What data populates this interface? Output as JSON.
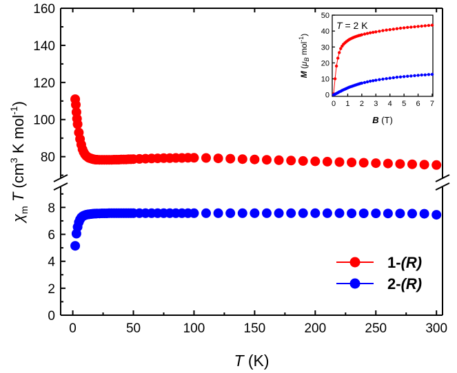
{
  "chart_data": {
    "type": "scatter",
    "xlabel": {
      "var": "T",
      "unit": "(K)"
    },
    "ylabel": {
      "chi": "χ",
      "sub": "m",
      "var": "T",
      "unit_open": "(cm",
      "sup1": "3",
      "unit_mid": " K mol",
      "sup2": "-1",
      "unit_close": ")"
    },
    "xlim": [
      -10,
      305
    ],
    "ylim_lower": [
      0,
      9.5
    ],
    "ylim_upper": [
      68,
      160
    ],
    "x_ticks": [
      "0",
      "50",
      "100",
      "150",
      "200",
      "250",
      "300"
    ],
    "x_tick_values": [
      0,
      50,
      100,
      150,
      200,
      250,
      300
    ],
    "y_ticks_lower": [
      "0",
      "2",
      "4",
      "6",
      "8"
    ],
    "y_tick_values_lower": [
      0,
      2,
      4,
      6,
      8
    ],
    "y_ticks_upper": [
      "80",
      "100",
      "120",
      "140",
      "160"
    ],
    "y_tick_values_upper": [
      80,
      100,
      120,
      140,
      160
    ],
    "axis_break": "//",
    "legend": {
      "position": "bottom-right",
      "entries": [
        {
          "bold": "1-",
          "italic": "(R)",
          "color": "#ff0000"
        },
        {
          "bold": "2-",
          "italic": "(R)",
          "color": "#0000ff"
        }
      ]
    },
    "series": [
      {
        "name": "1-(R)",
        "color": "#ff0000",
        "panel": "upper",
        "points": [
          [
            2,
            111
          ],
          [
            2.5,
            108
          ],
          [
            3,
            104
          ],
          [
            3.5,
            100.5
          ],
          [
            4,
            97.5
          ],
          [
            5,
            93
          ],
          [
            6,
            89.5
          ],
          [
            7,
            86.5
          ],
          [
            8,
            84
          ],
          [
            9,
            82.5
          ],
          [
            10,
            81.3
          ],
          [
            11,
            80.5
          ],
          [
            12,
            80
          ],
          [
            13,
            79.5
          ],
          [
            14,
            79.2
          ],
          [
            15,
            79
          ],
          [
            16,
            78.8
          ],
          [
            17,
            78.6
          ],
          [
            18,
            78.5
          ],
          [
            19,
            78.4
          ],
          [
            20,
            78.4
          ],
          [
            22,
            78.3
          ],
          [
            24,
            78.3
          ],
          [
            26,
            78.3
          ],
          [
            28,
            78.3
          ],
          [
            30,
            78.3
          ],
          [
            32,
            78.3
          ],
          [
            34,
            78.4
          ],
          [
            36,
            78.4
          ],
          [
            38,
            78.4
          ],
          [
            40,
            78.5
          ],
          [
            42,
            78.5
          ],
          [
            44,
            78.5
          ],
          [
            46,
            78.6
          ],
          [
            48,
            78.6
          ],
          [
            50,
            78.7
          ],
          [
            55,
            78.8
          ],
          [
            60,
            78.9
          ],
          [
            65,
            79
          ],
          [
            70,
            79.1
          ],
          [
            75,
            79.2
          ],
          [
            80,
            79.2
          ],
          [
            85,
            79.3
          ],
          [
            90,
            79.3
          ],
          [
            95,
            79.4
          ],
          [
            100,
            79.4
          ],
          [
            110,
            79.3
          ],
          [
            120,
            79.1
          ],
          [
            130,
            78.9
          ],
          [
            140,
            78.7
          ],
          [
            150,
            78.5
          ],
          [
            160,
            78.3
          ],
          [
            170,
            78.1
          ],
          [
            180,
            77.9
          ],
          [
            190,
            77.7
          ],
          [
            200,
            77.5
          ],
          [
            210,
            77.3
          ],
          [
            220,
            77.1
          ],
          [
            230,
            76.9
          ],
          [
            240,
            76.7
          ],
          [
            250,
            76.5
          ],
          [
            260,
            76.3
          ],
          [
            270,
            76.1
          ],
          [
            280,
            75.9
          ],
          [
            290,
            75.7
          ],
          [
            300,
            75.5
          ]
        ]
      },
      {
        "name": "2-(R)",
        "color": "#0000ff",
        "panel": "lower",
        "points": [
          [
            2,
            5.15
          ],
          [
            3,
            6.05
          ],
          [
            4,
            6.55
          ],
          [
            5,
            6.9
          ],
          [
            6,
            7.1
          ],
          [
            7,
            7.25
          ],
          [
            8,
            7.33
          ],
          [
            9,
            7.38
          ],
          [
            10,
            7.42
          ],
          [
            11,
            7.45
          ],
          [
            12,
            7.47
          ],
          [
            13,
            7.49
          ],
          [
            14,
            7.5
          ],
          [
            15,
            7.51
          ],
          [
            16,
            7.52
          ],
          [
            17,
            7.53
          ],
          [
            18,
            7.54
          ],
          [
            19,
            7.54
          ],
          [
            20,
            7.55
          ],
          [
            22,
            7.55
          ],
          [
            24,
            7.56
          ],
          [
            26,
            7.56
          ],
          [
            28,
            7.56
          ],
          [
            30,
            7.57
          ],
          [
            32,
            7.57
          ],
          [
            34,
            7.57
          ],
          [
            36,
            7.57
          ],
          [
            38,
            7.57
          ],
          [
            40,
            7.57
          ],
          [
            42,
            7.57
          ],
          [
            44,
            7.57
          ],
          [
            46,
            7.57
          ],
          [
            48,
            7.57
          ],
          [
            50,
            7.57
          ],
          [
            55,
            7.57
          ],
          [
            60,
            7.57
          ],
          [
            65,
            7.57
          ],
          [
            70,
            7.57
          ],
          [
            75,
            7.57
          ],
          [
            80,
            7.57
          ],
          [
            85,
            7.57
          ],
          [
            90,
            7.57
          ],
          [
            95,
            7.57
          ],
          [
            100,
            7.57
          ],
          [
            110,
            7.57
          ],
          [
            120,
            7.57
          ],
          [
            130,
            7.57
          ],
          [
            140,
            7.57
          ],
          [
            150,
            7.57
          ],
          [
            160,
            7.57
          ],
          [
            170,
            7.57
          ],
          [
            180,
            7.57
          ],
          [
            190,
            7.57
          ],
          [
            200,
            7.57
          ],
          [
            210,
            7.57
          ],
          [
            220,
            7.57
          ],
          [
            230,
            7.56
          ],
          [
            240,
            7.56
          ],
          [
            250,
            7.56
          ],
          [
            260,
            7.55
          ],
          [
            270,
            7.55
          ],
          [
            280,
            7.54
          ],
          [
            290,
            7.53
          ],
          [
            300,
            7.45
          ]
        ]
      }
    ],
    "inset": {
      "annotation": {
        "var": "T",
        "rest": " = 2 K"
      },
      "xlabel": {
        "var": "B",
        "unit": " (T)"
      },
      "ylabel": {
        "var": "M",
        "open": " (",
        "mu": "μ",
        "sub": "B",
        "unit": " mol",
        "sup": "-1",
        "close": ")"
      },
      "xlim": [
        -0.1,
        7.05
      ],
      "ylim": [
        -1,
        50
      ],
      "x_ticks": [
        "0",
        "1",
        "2",
        "3",
        "4",
        "5",
        "6",
        "7"
      ],
      "x_tick_values": [
        0,
        1,
        2,
        3,
        4,
        5,
        6,
        7
      ],
      "y_ticks": [
        "0",
        "10",
        "20",
        "30",
        "40",
        "50"
      ],
      "y_tick_values": [
        0,
        10,
        20,
        30,
        40,
        50
      ],
      "series": [
        {
          "name": "1-(R)",
          "color": "#ff0000",
          "points": [
            [
              0,
              0.5
            ],
            [
              0.1,
              10
            ],
            [
              0.2,
              18
            ],
            [
              0.3,
              23
            ],
            [
              0.4,
              26.5
            ],
            [
              0.5,
              29
            ],
            [
              0.6,
              30.5
            ],
            [
              0.7,
              31.7
            ],
            [
              0.8,
              32.6
            ],
            [
              0.9,
              33.3
            ],
            [
              1.0,
              34
            ],
            [
              1.1,
              34.6
            ],
            [
              1.2,
              35.1
            ],
            [
              1.3,
              35.5
            ],
            [
              1.4,
              35.9
            ],
            [
              1.5,
              36.3
            ],
            [
              1.6,
              36.6
            ],
            [
              1.7,
              36.9
            ],
            [
              1.8,
              37.2
            ],
            [
              1.9,
              37.4
            ],
            [
              2.0,
              37.7
            ],
            [
              2.2,
              38.1
            ],
            [
              2.4,
              38.5
            ],
            [
              2.6,
              38.9
            ],
            [
              2.8,
              39.2
            ],
            [
              3.0,
              39.5
            ],
            [
              3.25,
              39.9
            ],
            [
              3.5,
              40.3
            ],
            [
              3.75,
              40.6
            ],
            [
              4.0,
              40.9
            ],
            [
              4.25,
              41.2
            ],
            [
              4.5,
              41.5
            ],
            [
              4.75,
              41.8
            ],
            [
              5.0,
              42
            ],
            [
              5.25,
              42.3
            ],
            [
              5.5,
              42.5
            ],
            [
              5.75,
              42.7
            ],
            [
              6.0,
              42.9
            ],
            [
              6.25,
              43.1
            ],
            [
              6.5,
              43.3
            ],
            [
              6.75,
              43.5
            ],
            [
              7.0,
              43.7
            ]
          ]
        },
        {
          "name": "2-(R)",
          "color": "#0000ff",
          "points": [
            [
              0,
              0
            ],
            [
              0.1,
              0.4
            ],
            [
              0.2,
              0.8
            ],
            [
              0.3,
              1.3
            ],
            [
              0.4,
              1.8
            ],
            [
              0.5,
              2.2
            ],
            [
              0.6,
              2.7
            ],
            [
              0.7,
              3.1
            ],
            [
              0.8,
              3.5
            ],
            [
              0.9,
              3.9
            ],
            [
              1.0,
              4.3
            ],
            [
              1.1,
              4.7
            ],
            [
              1.2,
              5.0
            ],
            [
              1.3,
              5.3
            ],
            [
              1.4,
              5.6
            ],
            [
              1.5,
              5.9
            ],
            [
              1.6,
              6.2
            ],
            [
              1.7,
              6.5
            ],
            [
              1.8,
              6.8
            ],
            [
              1.9,
              7.1
            ],
            [
              2.0,
              7.3
            ],
            [
              2.2,
              7.7
            ],
            [
              2.4,
              8.1
            ],
            [
              2.6,
              8.5
            ],
            [
              2.8,
              8.8
            ],
            [
              3.0,
              9.1
            ],
            [
              3.25,
              9.5
            ],
            [
              3.5,
              9.8
            ],
            [
              3.75,
              10.1
            ],
            [
              4.0,
              10.4
            ],
            [
              4.25,
              10.7
            ],
            [
              4.5,
              11.0
            ],
            [
              4.75,
              11.2
            ],
            [
              5.0,
              11.4
            ],
            [
              5.25,
              11.6
            ],
            [
              5.5,
              11.8
            ],
            [
              5.75,
              12.0
            ],
            [
              6.0,
              12.2
            ],
            [
              6.25,
              12.4
            ],
            [
              6.5,
              12.5
            ],
            [
              6.75,
              12.7
            ],
            [
              7.0,
              12.8
            ]
          ]
        }
      ]
    }
  }
}
